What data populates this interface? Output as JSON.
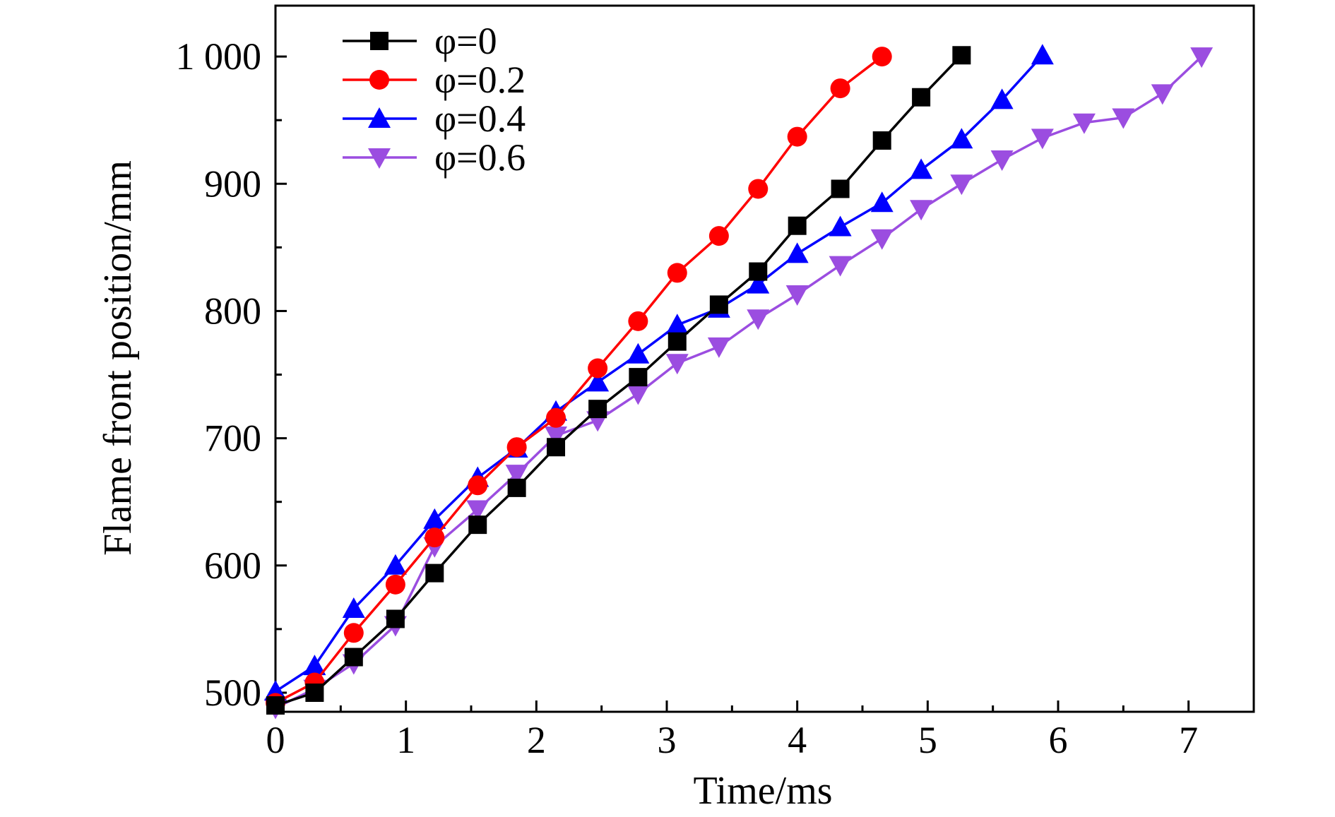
{
  "chart_data": {
    "type": "line",
    "title": "",
    "xlabel": "Time/ms",
    "ylabel": "Flame front position/mm",
    "xlim": [
      0,
      7.5
    ],
    "ylim": [
      485,
      1040
    ],
    "x_ticks": [
      0,
      1,
      2,
      3,
      4,
      5,
      6,
      7
    ],
    "x_tick_labels": [
      "0",
      "1",
      "2",
      "3",
      "4",
      "5",
      "6",
      "7"
    ],
    "y_ticks": [
      500,
      600,
      700,
      800,
      900,
      1000
    ],
    "y_tick_labels": [
      "500",
      "600",
      "700",
      "800",
      "900",
      "1 000"
    ],
    "grid": false,
    "legend_position": "top-left",
    "series": [
      {
        "name": "φ=0",
        "color": "#000000",
        "marker": "square",
        "x": [
          0,
          0.3,
          0.6,
          0.92,
          1.22,
          1.55,
          1.85,
          2.15,
          2.47,
          2.78,
          3.08,
          3.4,
          3.7,
          4.0,
          4.33,
          4.65,
          4.95,
          5.26
        ],
        "y": [
          490,
          500,
          528,
          558,
          594,
          632,
          661,
          693,
          723,
          748,
          776,
          805,
          831,
          867,
          896,
          934,
          968,
          1001
        ]
      },
      {
        "name": "φ=0.2",
        "color": "#ff0000",
        "marker": "circle",
        "x": [
          0,
          0.3,
          0.6,
          0.92,
          1.22,
          1.55,
          1.85,
          2.15,
          2.47,
          2.78,
          3.08,
          3.4,
          3.7,
          4.0,
          4.33,
          4.65
        ],
        "y": [
          492,
          508,
          547,
          585,
          622,
          663,
          693,
          716,
          755,
          792,
          830,
          859,
          896,
          937,
          975,
          1000
        ]
      },
      {
        "name": "φ=0.4",
        "color": "#0000ff",
        "marker": "triangle-up",
        "x": [
          0,
          0.3,
          0.6,
          0.92,
          1.22,
          1.55,
          1.85,
          2.15,
          2.47,
          2.78,
          3.08,
          3.4,
          3.7,
          4.0,
          4.33,
          4.65,
          4.95,
          5.26,
          5.57,
          5.88
        ],
        "y": [
          501,
          521,
          566,
          600,
          636,
          669,
          692,
          721,
          744,
          766,
          789,
          802,
          821,
          845,
          866,
          885,
          911,
          935,
          966,
          1001
        ]
      },
      {
        "name": "φ=0.6",
        "color": "#9b4de0",
        "marker": "triangle-down",
        "x": [
          0,
          0.3,
          0.6,
          0.92,
          1.22,
          1.55,
          1.85,
          2.15,
          2.47,
          2.78,
          3.08,
          3.4,
          3.7,
          4.0,
          4.33,
          4.65,
          4.95,
          5.26,
          5.57,
          5.88,
          6.2,
          6.5,
          6.8,
          7.1
        ],
        "y": [
          488,
          503,
          523,
          553,
          615,
          644,
          672,
          702,
          714,
          735,
          759,
          772,
          794,
          813,
          836,
          857,
          880,
          900,
          919,
          936,
          948,
          952,
          971,
          1000
        ]
      }
    ]
  }
}
